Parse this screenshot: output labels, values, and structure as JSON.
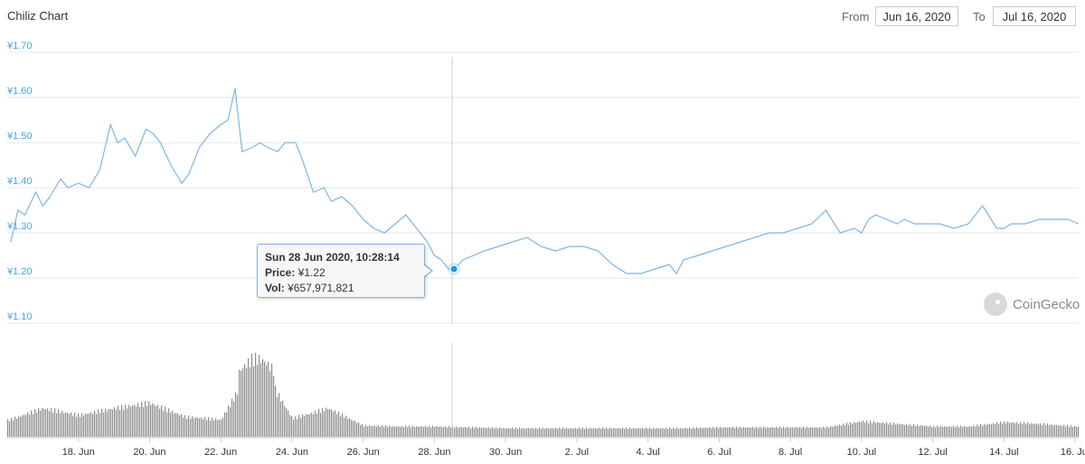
{
  "title": "Chiliz Chart",
  "range": {
    "from_label": "From",
    "from_value": "Jun 16, 2020",
    "to_label": "To",
    "to_value": "Jul 16, 2020"
  },
  "tooltip": {
    "date": "Sun 28 Jun 2020, 10:28:14",
    "price_label": "Price:",
    "price_value": "¥1.22",
    "vol_label": "Vol:",
    "vol_value": "¥657,971,821"
  },
  "brand": "CoinGecko",
  "colors": {
    "line": "#7cb5ec",
    "axis_label": "#4aa3df",
    "grid": "#e6e6e6",
    "volume": "#8c8c8c"
  },
  "chart_data": [
    {
      "type": "line",
      "title": "Chiliz Chart",
      "currency": "¥",
      "ylim": [
        1.1,
        1.7
      ],
      "y_ticks": [
        "¥1.10",
        "¥1.20",
        "¥1.30",
        "¥1.40",
        "¥1.50",
        "¥1.60",
        "¥1.70"
      ],
      "y_tick_values": [
        1.1,
        1.2,
        1.3,
        1.4,
        1.5,
        1.6,
        1.7
      ],
      "x_ticks": [
        "18. Jun",
        "20. Jun",
        "22. Jun",
        "24. Jun",
        "26. Jun",
        "28. Jun",
        "30. Jun",
        "2. Jul",
        "4. Jul",
        "6. Jul",
        "8. Jul",
        "10. Jul",
        "12. Jul",
        "14. Jul",
        "16. Jul"
      ],
      "x_tick_days": [
        2,
        4,
        6,
        8,
        10,
        12,
        14,
        16,
        18,
        20,
        22,
        24,
        26,
        28,
        30
      ],
      "x_unit_note": "days after 16 Jun 2020",
      "xlim": [
        0.1,
        30.1
      ],
      "grid": true,
      "crosshair_day": 12.5,
      "highlight": {
        "x": 12.55,
        "y": 1.22
      },
      "series": [
        {
          "name": "Price",
          "x": [
            0.1,
            0.3,
            0.5,
            0.8,
            1.0,
            1.2,
            1.5,
            1.7,
            2.0,
            2.3,
            2.6,
            2.9,
            3.1,
            3.3,
            3.6,
            3.9,
            4.1,
            4.3,
            4.6,
            4.9,
            5.1,
            5.4,
            5.7,
            6.0,
            6.2,
            6.4,
            6.6,
            6.9,
            7.1,
            7.3,
            7.6,
            7.8,
            8.1,
            8.3,
            8.6,
            8.9,
            9.1,
            9.4,
            9.7,
            10.0,
            10.3,
            10.6,
            10.9,
            11.2,
            11.5,
            11.8,
            12.0,
            12.2,
            12.4,
            12.55,
            12.8,
            13.1,
            13.4,
            13.8,
            14.2,
            14.6,
            15.0,
            15.4,
            15.8,
            16.2,
            16.6,
            17.0,
            17.4,
            17.8,
            18.2,
            18.6,
            18.8,
            19.0,
            19.4,
            19.8,
            20.2,
            20.6,
            21.0,
            21.4,
            21.8,
            22.2,
            22.6,
            23.0,
            23.4,
            23.8,
            24.0,
            24.2,
            24.4,
            24.7,
            25.0,
            25.2,
            25.5,
            25.8,
            26.2,
            26.6,
            27.0,
            27.4,
            27.8,
            28.0,
            28.2,
            28.6,
            29.0,
            29.4,
            29.8,
            30.1
          ],
          "y": [
            1.28,
            1.35,
            1.34,
            1.39,
            1.36,
            1.38,
            1.42,
            1.4,
            1.41,
            1.4,
            1.44,
            1.54,
            1.5,
            1.51,
            1.47,
            1.53,
            1.52,
            1.5,
            1.45,
            1.41,
            1.43,
            1.49,
            1.52,
            1.54,
            1.55,
            1.62,
            1.48,
            1.49,
            1.5,
            1.49,
            1.48,
            1.5,
            1.5,
            1.46,
            1.39,
            1.4,
            1.37,
            1.38,
            1.36,
            1.33,
            1.31,
            1.3,
            1.32,
            1.34,
            1.31,
            1.28,
            1.25,
            1.24,
            1.22,
            1.22,
            1.24,
            1.25,
            1.26,
            1.27,
            1.28,
            1.29,
            1.27,
            1.26,
            1.27,
            1.27,
            1.26,
            1.23,
            1.21,
            1.21,
            1.22,
            1.23,
            1.21,
            1.24,
            1.25,
            1.26,
            1.27,
            1.28,
            1.29,
            1.3,
            1.3,
            1.31,
            1.32,
            1.35,
            1.3,
            1.31,
            1.3,
            1.33,
            1.34,
            1.33,
            1.32,
            1.33,
            1.32,
            1.32,
            1.32,
            1.31,
            1.32,
            1.36,
            1.31,
            1.31,
            1.32,
            1.32,
            1.33,
            1.33,
            1.33,
            1.32
          ]
        }
      ]
    },
    {
      "type": "bar",
      "title": "",
      "series": [
        {
          "name": "Volume",
          "x_day": [
            0,
            1,
            2,
            3,
            4,
            5,
            6,
            7,
            8,
            9,
            10,
            11,
            12,
            13,
            14,
            15,
            16,
            17,
            18,
            19,
            20,
            21,
            22,
            23,
            24,
            25,
            26,
            27,
            28,
            29,
            30
          ],
          "relative_level": [
            0.19,
            0.33,
            0.25,
            0.33,
            0.39,
            0.23,
            0.2,
            0.9,
            0.21,
            0.33,
            0.13,
            0.12,
            0.12,
            0.11,
            0.1,
            0.1,
            0.1,
            0.1,
            0.1,
            0.1,
            0.11,
            0.11,
            0.11,
            0.11,
            0.18,
            0.15,
            0.12,
            0.12,
            0.17,
            0.15,
            0.12
          ]
        }
      ]
    }
  ]
}
